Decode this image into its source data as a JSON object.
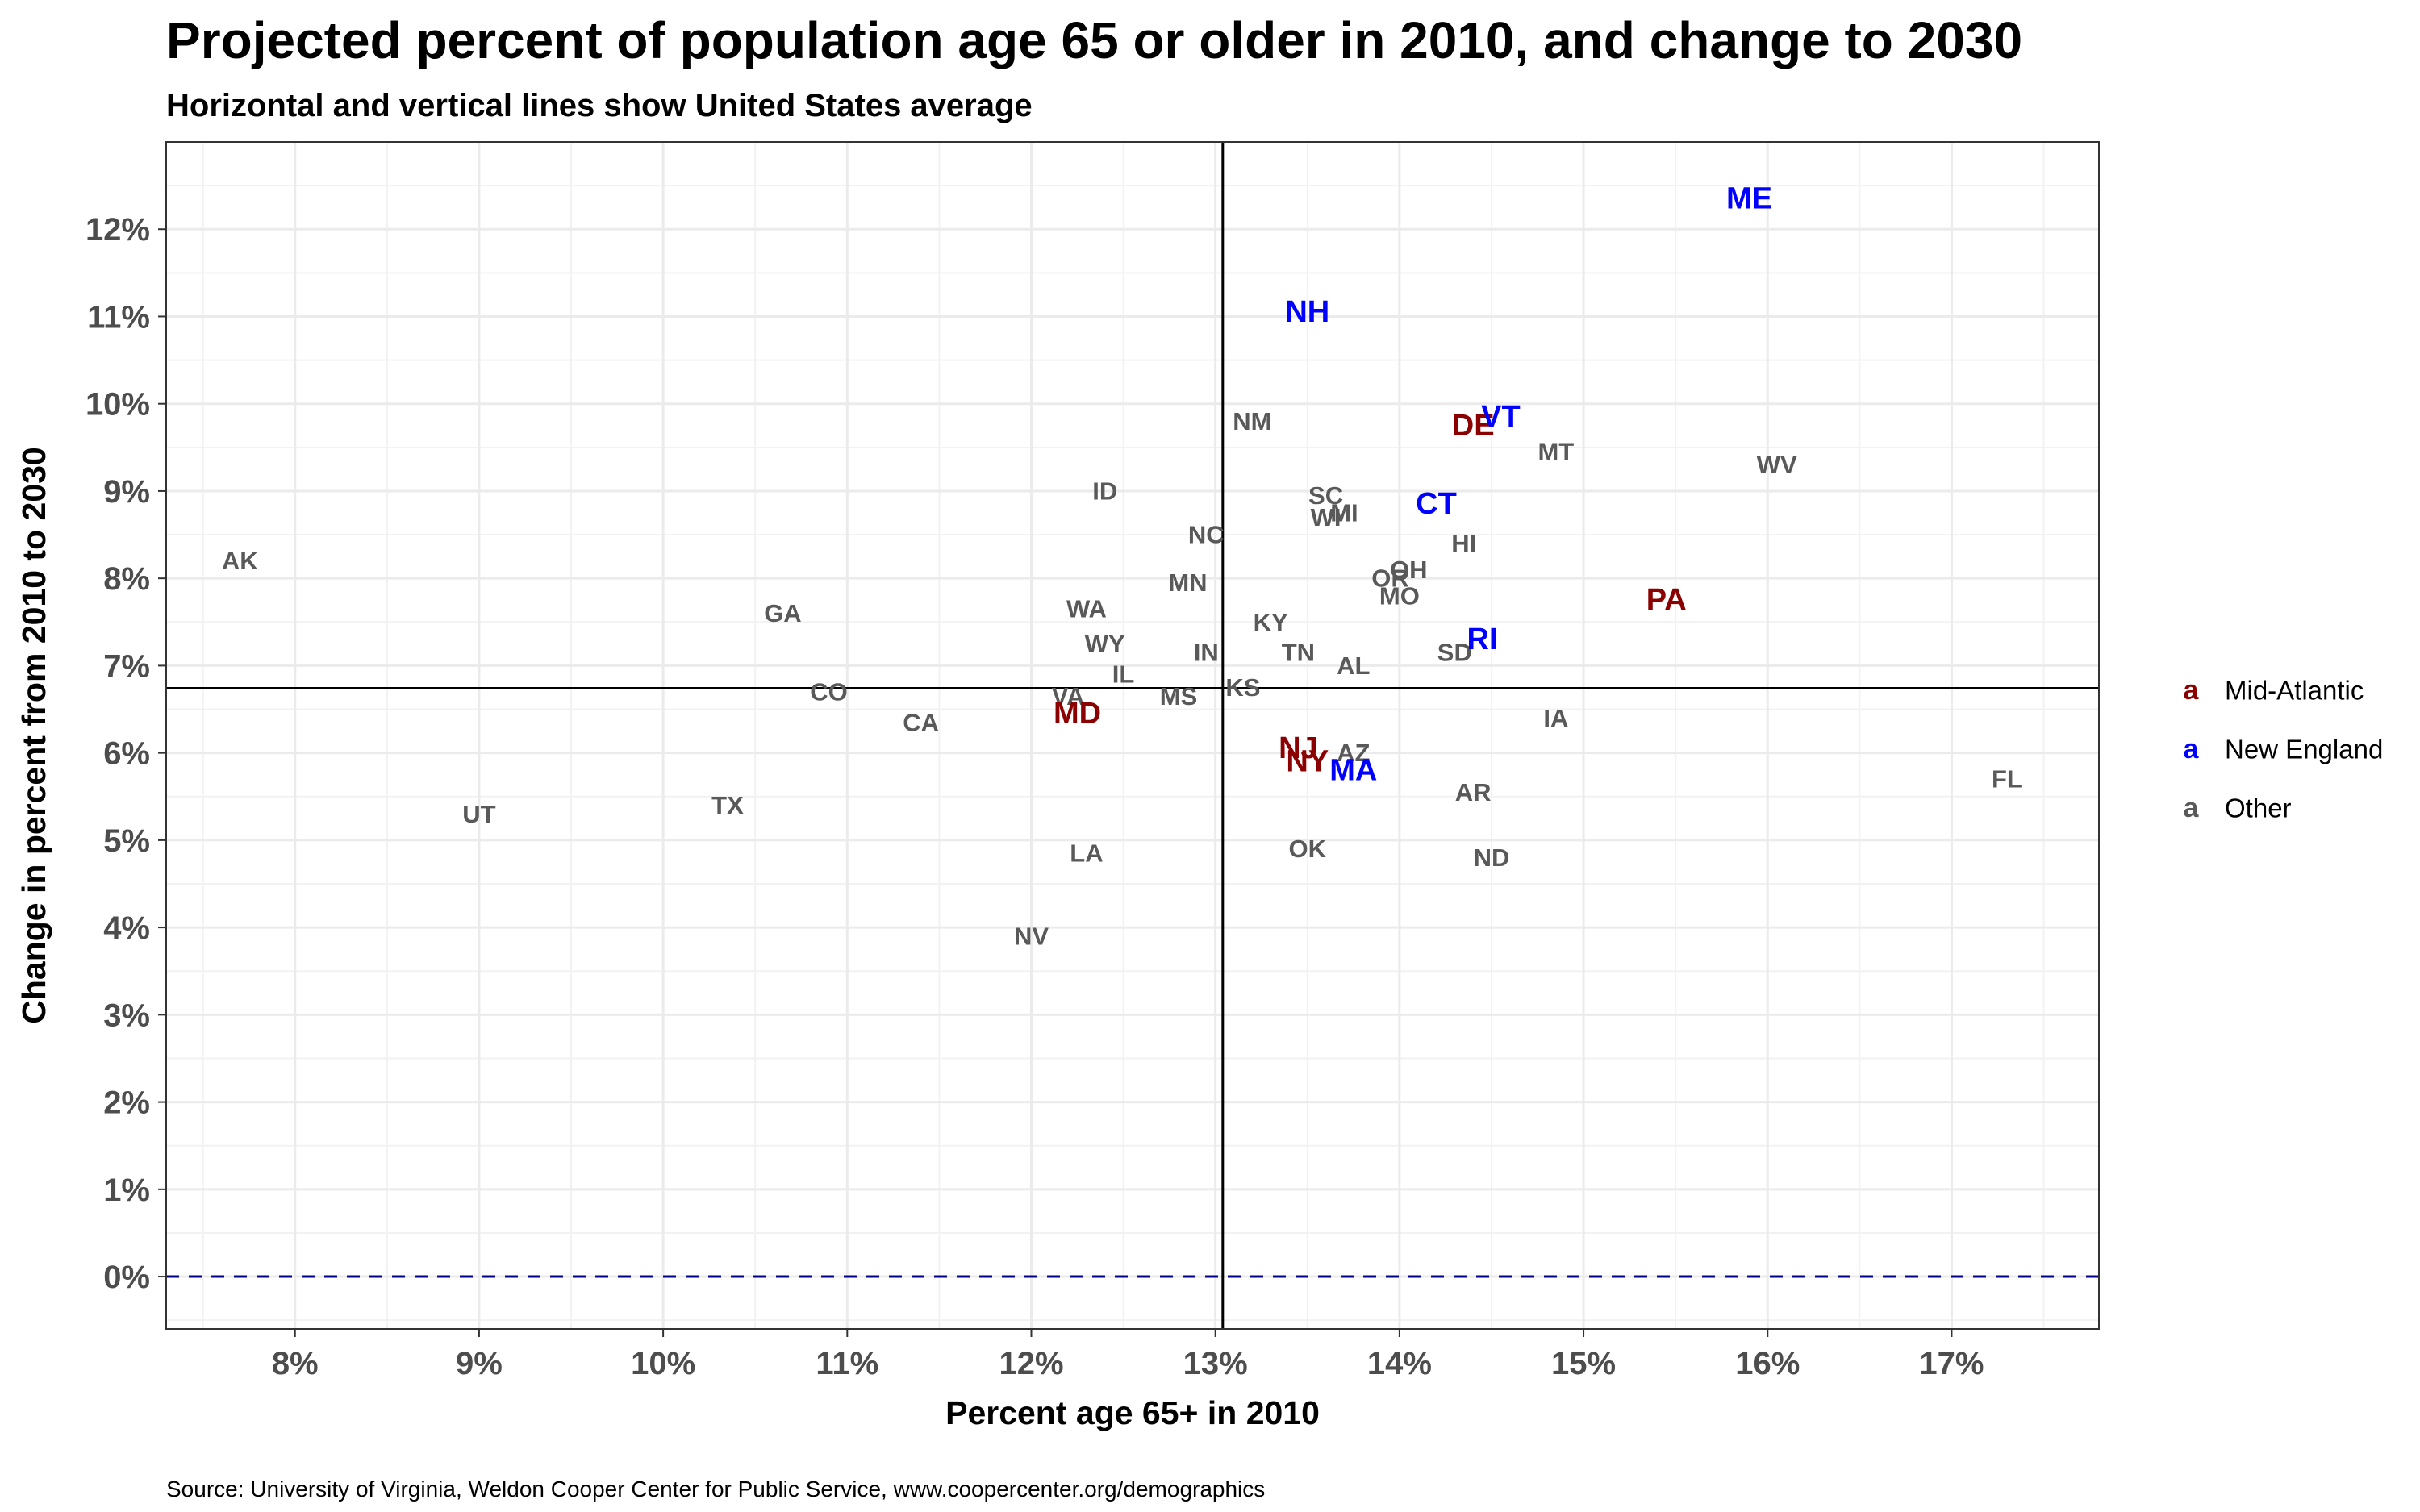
{
  "chart_data": {
    "type": "scatter",
    "title": "Projected percent of population age 65 or older in 2010, and change to 2030",
    "subtitle": "Horizontal and vertical lines show United States average",
    "xlabel": "Percent age 65+ in 2010",
    "ylabel": "Change in percent from 2010 to 2030",
    "caption": "Source: University of Virginia, Weldon Cooper Center for Public Service, www.coopercenter.org/demographics",
    "xlim": [
      7.3,
      17.8
    ],
    "ylim": [
      -0.6,
      13.0
    ],
    "x_ticks": [
      8,
      9,
      10,
      11,
      12,
      13,
      14,
      15,
      16,
      17
    ],
    "x_tick_labels": [
      "8%",
      "9%",
      "10%",
      "11%",
      "12%",
      "13%",
      "14%",
      "15%",
      "16%",
      "17%"
    ],
    "y_ticks": [
      0,
      1,
      2,
      3,
      4,
      5,
      6,
      7,
      8,
      9,
      10,
      11,
      12
    ],
    "y_tick_labels": [
      "0%",
      "1%",
      "2%",
      "3%",
      "4%",
      "5%",
      "6%",
      "7%",
      "8%",
      "9%",
      "10%",
      "11%",
      "12%"
    ],
    "grid": true,
    "us_average": {
      "x": 13.04,
      "y": 6.74
    },
    "zero_line": {
      "y": 0,
      "color": "#00008B",
      "style": "dashed"
    },
    "legend": {
      "placement": "right",
      "key_glyph": "a",
      "entries": [
        {
          "name": "Mid-Atlantic",
          "color": "#8B0000"
        },
        {
          "name": "New England",
          "color": "#0000FF"
        },
        {
          "name": "Other",
          "color": "#595959"
        }
      ]
    },
    "points": [
      {
        "label": "AK",
        "x": 7.7,
        "y": 8.2,
        "group": "Other"
      },
      {
        "label": "UT",
        "x": 9.0,
        "y": 5.3,
        "group": "Other"
      },
      {
        "label": "TX",
        "x": 10.35,
        "y": 5.4,
        "group": "Other"
      },
      {
        "label": "GA",
        "x": 10.65,
        "y": 7.6,
        "group": "Other"
      },
      {
        "label": "CO",
        "x": 10.9,
        "y": 6.7,
        "group": "Other"
      },
      {
        "label": "CA",
        "x": 11.4,
        "y": 6.35,
        "group": "Other"
      },
      {
        "label": "NV",
        "x": 12.0,
        "y": 3.9,
        "group": "Other"
      },
      {
        "label": "ID",
        "x": 12.4,
        "y": 9.0,
        "group": "Other"
      },
      {
        "label": "WA",
        "x": 12.3,
        "y": 7.65,
        "group": "Other"
      },
      {
        "label": "WY",
        "x": 12.4,
        "y": 7.25,
        "group": "Other"
      },
      {
        "label": "VA",
        "x": 12.2,
        "y": 6.65,
        "group": "Other"
      },
      {
        "label": "MD",
        "x": 12.25,
        "y": 6.45,
        "group": "Mid-Atlantic"
      },
      {
        "label": "IL",
        "x": 12.5,
        "y": 6.9,
        "group": "Other"
      },
      {
        "label": "LA",
        "x": 12.3,
        "y": 4.85,
        "group": "Other"
      },
      {
        "label": "NC",
        "x": 12.95,
        "y": 8.5,
        "group": "Other"
      },
      {
        "label": "MN",
        "x": 12.85,
        "y": 7.95,
        "group": "Other"
      },
      {
        "label": "MS",
        "x": 12.8,
        "y": 6.65,
        "group": "Other"
      },
      {
        "label": "IN",
        "x": 12.95,
        "y": 7.15,
        "group": "Other"
      },
      {
        "label": "NM",
        "x": 13.2,
        "y": 9.8,
        "group": "Other"
      },
      {
        "label": "KS",
        "x": 13.15,
        "y": 6.75,
        "group": "Other"
      },
      {
        "label": "KY",
        "x": 13.3,
        "y": 7.5,
        "group": "Other"
      },
      {
        "label": "NH",
        "x": 13.5,
        "y": 11.05,
        "group": "New England"
      },
      {
        "label": "SC",
        "x": 13.6,
        "y": 8.95,
        "group": "Other"
      },
      {
        "label": "WI",
        "x": 13.6,
        "y": 8.7,
        "group": "Other"
      },
      {
        "label": "MI",
        "x": 13.7,
        "y": 8.75,
        "group": "Other"
      },
      {
        "label": "TN",
        "x": 13.45,
        "y": 7.15,
        "group": "Other"
      },
      {
        "label": "AL",
        "x": 13.75,
        "y": 7.0,
        "group": "Other"
      },
      {
        "label": "NJ",
        "x": 13.45,
        "y": 6.05,
        "group": "Mid-Atlantic"
      },
      {
        "label": "NY",
        "x": 13.5,
        "y": 5.9,
        "group": "Mid-Atlantic"
      },
      {
        "label": "AZ",
        "x": 13.75,
        "y": 6.0,
        "group": "Other"
      },
      {
        "label": "MA",
        "x": 13.75,
        "y": 5.8,
        "group": "New England"
      },
      {
        "label": "OK",
        "x": 13.5,
        "y": 4.9,
        "group": "Other"
      },
      {
        "label": "CT",
        "x": 14.2,
        "y": 8.85,
        "group": "New England"
      },
      {
        "label": "OR",
        "x": 13.95,
        "y": 8.0,
        "group": "Other"
      },
      {
        "label": "OH",
        "x": 14.05,
        "y": 8.1,
        "group": "Other"
      },
      {
        "label": "MO",
        "x": 14.0,
        "y": 7.8,
        "group": "Other"
      },
      {
        "label": "HI",
        "x": 14.35,
        "y": 8.4,
        "group": "Other"
      },
      {
        "label": "SD",
        "x": 14.3,
        "y": 7.15,
        "group": "Other"
      },
      {
        "label": "RI",
        "x": 14.45,
        "y": 7.3,
        "group": "New England"
      },
      {
        "label": "DE",
        "x": 14.4,
        "y": 9.75,
        "group": "Mid-Atlantic"
      },
      {
        "label": "VT",
        "x": 14.55,
        "y": 9.85,
        "group": "New England"
      },
      {
        "label": "MT",
        "x": 14.85,
        "y": 9.45,
        "group": "Other"
      },
      {
        "label": "AR",
        "x": 14.4,
        "y": 5.55,
        "group": "Other"
      },
      {
        "label": "ND",
        "x": 14.5,
        "y": 4.8,
        "group": "Other"
      },
      {
        "label": "IA",
        "x": 14.85,
        "y": 6.4,
        "group": "Other"
      },
      {
        "label": "PA",
        "x": 15.45,
        "y": 7.75,
        "group": "Mid-Atlantic"
      },
      {
        "label": "ME",
        "x": 15.9,
        "y": 12.35,
        "group": "New England"
      },
      {
        "label": "WV",
        "x": 16.05,
        "y": 9.3,
        "group": "Other"
      },
      {
        "label": "FL",
        "x": 17.3,
        "y": 5.7,
        "group": "Other"
      }
    ]
  }
}
